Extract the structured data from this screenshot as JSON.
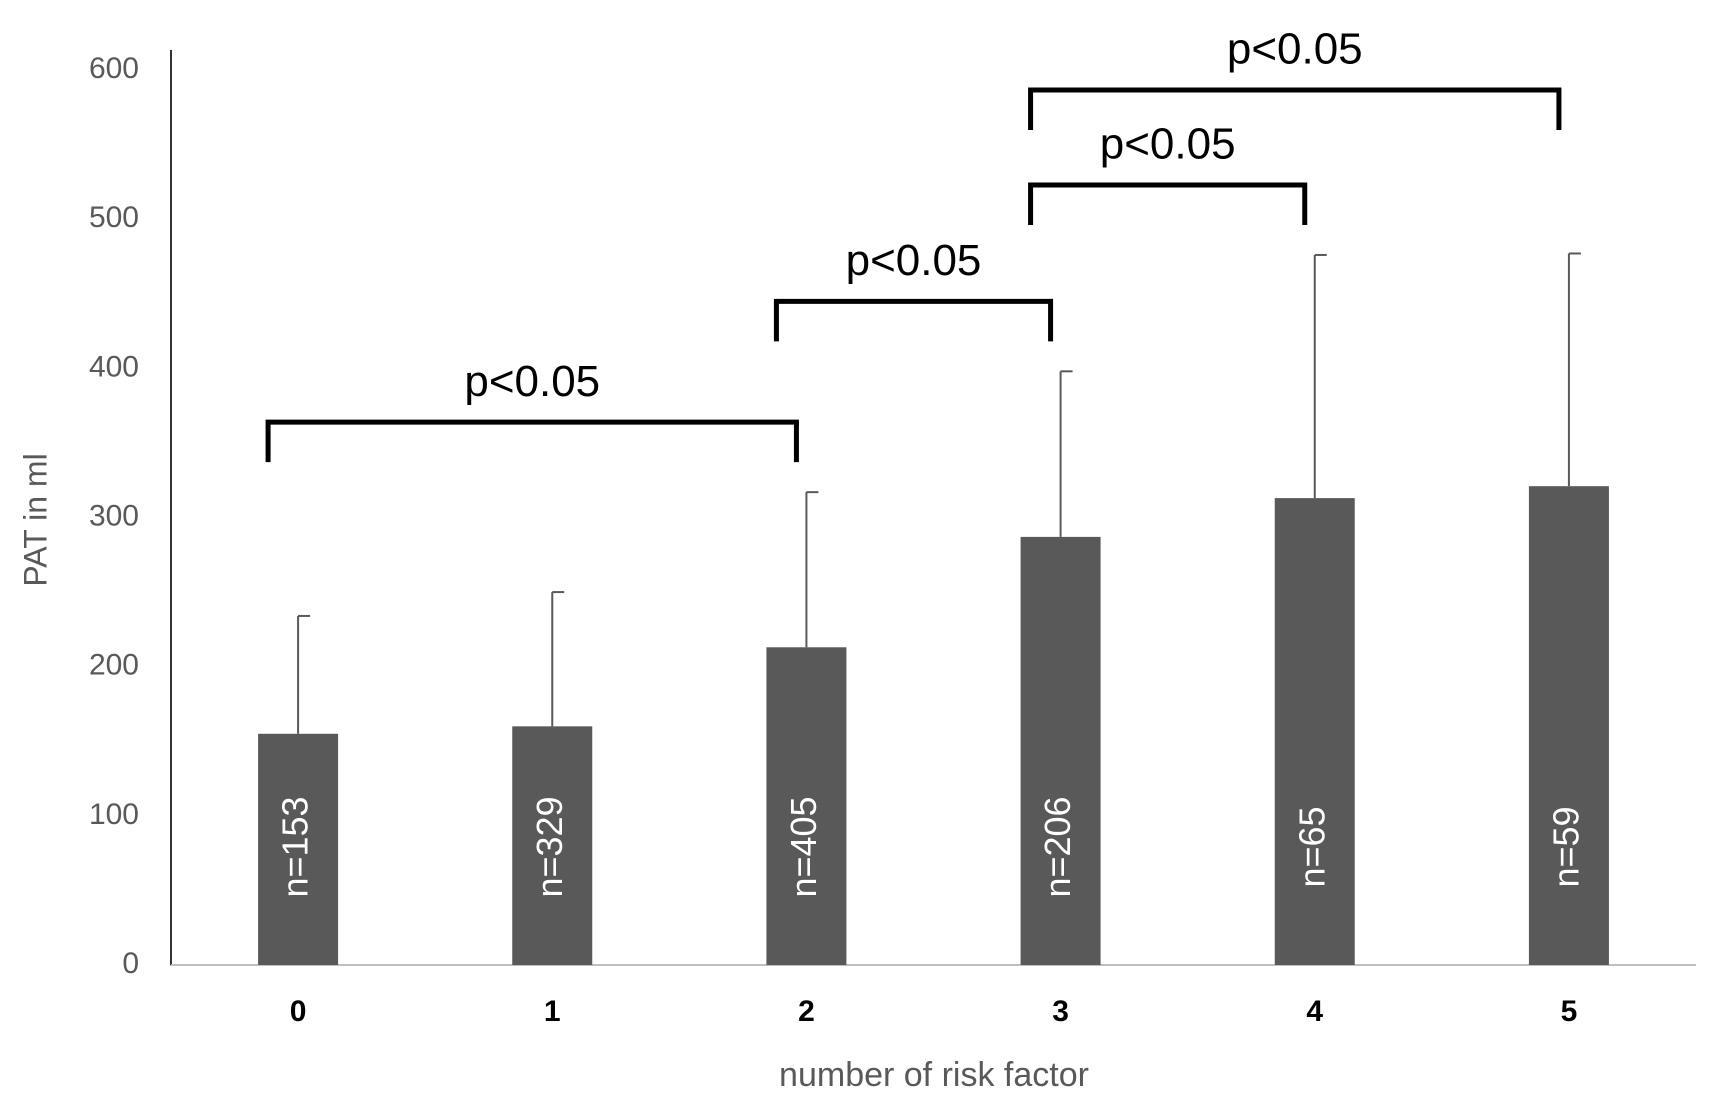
{
  "chart_data": {
    "type": "bar",
    "x_label": "number of risk factor",
    "y_label": "PAT in ml",
    "categories": [
      "0",
      "1",
      "2",
      "3",
      "4",
      "5"
    ],
    "values": [
      155,
      160,
      213,
      287,
      313,
      321
    ],
    "errors": [
      79,
      90,
      104,
      111,
      163,
      156
    ],
    "bar_labels": [
      "n=153",
      "n=329",
      "n=405",
      "n=206",
      "n=65",
      "n=59"
    ],
    "color": "#595959",
    "ylim": [
      0,
      600
    ],
    "yticks": [
      0,
      100,
      200,
      300,
      400,
      500,
      600
    ],
    "comparisons": [
      {
        "from": 0,
        "to": 2,
        "label": "p<0.05"
      },
      {
        "from": 2,
        "to": 3,
        "label": "p<0.05"
      },
      {
        "from": 3,
        "to": 4,
        "label": "p<0.05"
      },
      {
        "from": 3,
        "to": 5,
        "label": "p<0.05"
      }
    ]
  }
}
